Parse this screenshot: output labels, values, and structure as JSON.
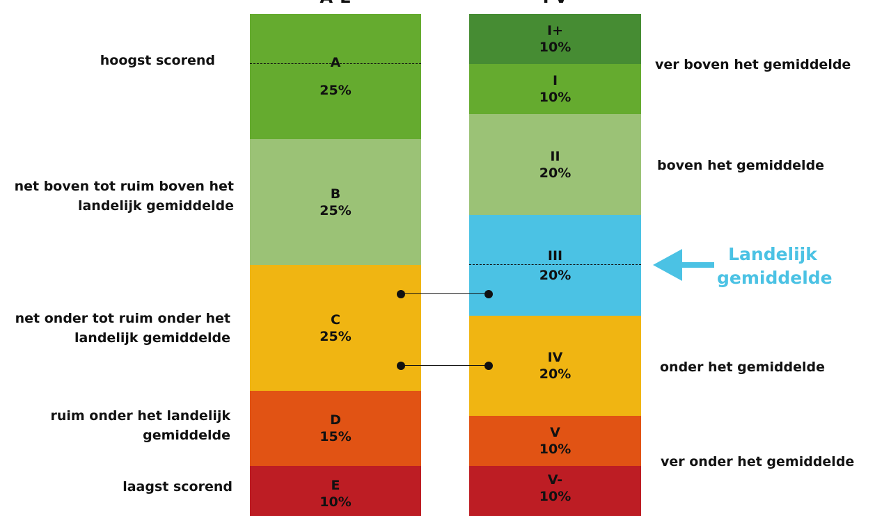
{
  "left_scale": {
    "title": "A-E",
    "blocks": [
      {
        "label": "A",
        "percent": "25%",
        "share": 0.25,
        "color": "#65ab2f"
      },
      {
        "label": "B",
        "percent": "25%",
        "share": 0.25,
        "color": "#9bc276"
      },
      {
        "label": "C",
        "percent": "25%",
        "share": 0.25,
        "color": "#f0b512"
      },
      {
        "label": "D",
        "percent": "15%",
        "share": 0.15,
        "color": "#e15314"
      },
      {
        "label": "E",
        "percent": "10%",
        "share": 0.1,
        "color": "#bd1d24"
      }
    ],
    "descriptions": [
      {
        "text": "hoogst scorend"
      },
      {
        "line1": "net boven tot ruim boven het",
        "line2": "landelijk gemiddelde"
      },
      {
        "line1": "net onder tot ruim onder het",
        "line2": "landelijk gemiddelde"
      },
      {
        "line1": "ruim onder het landelijk",
        "line2": "gemiddelde"
      },
      {
        "text": "laagst scorend"
      }
    ]
  },
  "right_scale": {
    "title": "I-V",
    "blocks": [
      {
        "label": "I+",
        "percent": "10%",
        "share": 0.1,
        "color": "#468c33"
      },
      {
        "label": "I",
        "percent": "10%",
        "share": 0.1,
        "color": "#65ab2f"
      },
      {
        "label": "II",
        "percent": "20%",
        "share": 0.2,
        "color": "#9bc276"
      },
      {
        "label": "III",
        "percent": "20%",
        "share": 0.2,
        "color": "#4bc2e4"
      },
      {
        "label": "IV",
        "percent": "20%",
        "share": 0.2,
        "color": "#f0b512"
      },
      {
        "label": "V",
        "percent": "10%",
        "share": 0.1,
        "color": "#e15314"
      },
      {
        "label": "V-",
        "percent": "10%",
        "share": 0.1,
        "color": "#bd1d24"
      }
    ],
    "descriptions": [
      {
        "text": "ver boven het gemiddelde"
      },
      {
        "text": "boven het gemiddelde"
      },
      {
        "text": "onder het gemiddelde"
      },
      {
        "text": "ver onder het gemiddelde"
      }
    ]
  },
  "national_average": {
    "line1": "Landelijk",
    "line2": "gemiddelde",
    "color": "#4bc2e4"
  }
}
